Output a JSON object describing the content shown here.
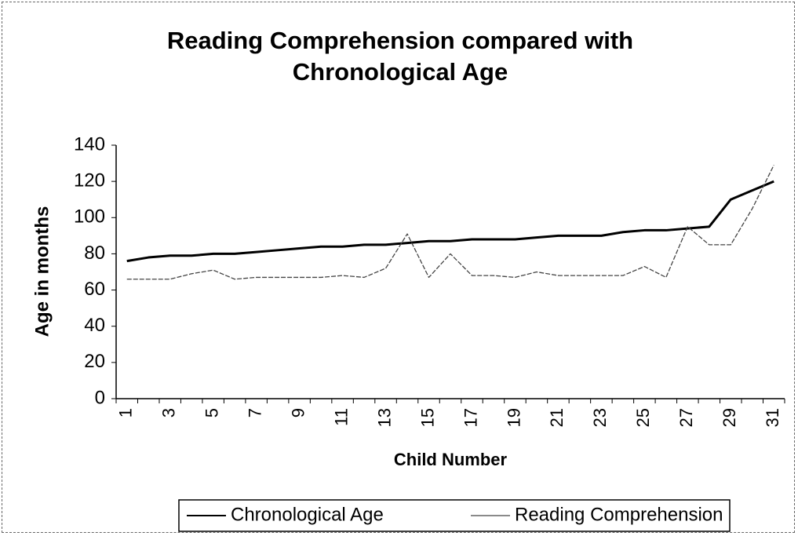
{
  "chart_data": {
    "type": "line",
    "title": "Reading Comprehension compared with Chronological Age",
    "x_label": "Child Number",
    "y_label": "Age in months",
    "categories": [
      "1",
      null,
      "3",
      null,
      "5",
      null,
      "7",
      null,
      "9",
      null,
      "11",
      null,
      "13",
      null,
      "15",
      null,
      "17",
      null,
      "19",
      null,
      "21",
      null,
      "23",
      null,
      "25",
      null,
      "27",
      null,
      "29",
      null,
      "31"
    ],
    "series": [
      {
        "name": "Chronological Age",
        "color": "#000000",
        "values": [
          76,
          78,
          79,
          79,
          80,
          80,
          81,
          82,
          83,
          84,
          84,
          85,
          85,
          86,
          87,
          87,
          88,
          88,
          88,
          89,
          90,
          90,
          90,
          92,
          93,
          93,
          94,
          95,
          110,
          115,
          120
        ]
      },
      {
        "name": "Reading Comprehension",
        "color": "#444444",
        "values": [
          66,
          66,
          66,
          69,
          71,
          66,
          67,
          67,
          67,
          67,
          68,
          67,
          72,
          91,
          67,
          80,
          68,
          68,
          67,
          70,
          68,
          68,
          68,
          68,
          73,
          67,
          95,
          85,
          85,
          105,
          129
        ]
      }
    ],
    "ylim": [
      0,
      140
    ],
    "yticks": [
      0,
      20,
      40,
      60,
      80,
      100,
      120,
      140
    ],
    "legend": "bottom"
  }
}
